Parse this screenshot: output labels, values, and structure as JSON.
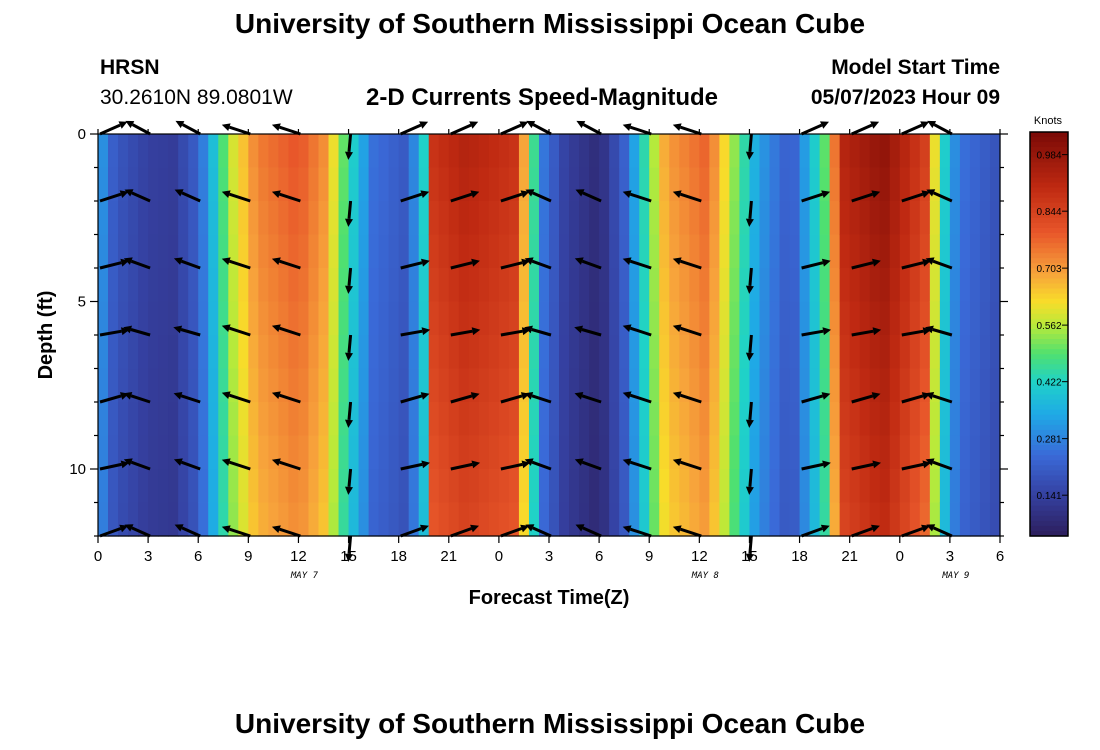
{
  "header": {
    "title": "University of Southern Mississippi Ocean Cube",
    "station_name": "HRSN",
    "station_coords": "30.2610N  89.0801W",
    "plot_title": "2-D Currents Speed-Magnitude",
    "model_start_label": "Model Start Time",
    "model_start_value": "05/07/2023 Hour 09"
  },
  "footer": {
    "title": "University of Southern Mississippi Ocean Cube"
  },
  "chart_data": {
    "type": "heatmap",
    "xlabel": "Forecast Time(Z)",
    "ylabel": "Depth (ft)",
    "x_tick_labels": [
      "0",
      "3",
      "6",
      "9",
      "12",
      "15",
      "18",
      "21",
      "0",
      "3",
      "6",
      "9",
      "12",
      "15",
      "18",
      "21",
      "0",
      "3",
      "6"
    ],
    "date_labels": [
      {
        "text": "MAY 7",
        "at_tick": 4
      },
      {
        "text": "MAY 8",
        "at_tick": 12
      },
      {
        "text": "MAY 9",
        "at_tick": 17
      }
    ],
    "y_ticks": [
      0,
      5,
      10
    ],
    "ylim": [
      0,
      12
    ],
    "colorbar": {
      "title": "Knots",
      "tick_labels": [
        "0.984",
        "0.844",
        "0.703",
        "0.562",
        "0.422",
        "0.281",
        "0.141"
      ],
      "tick_values": [
        0.984,
        0.844,
        0.703,
        0.562,
        0.422,
        0.281,
        0.141
      ],
      "vmin": 0.04,
      "vmax": 1.04
    },
    "speed_profile": [
      {
        "x": 0,
        "v": 0.38
      },
      {
        "x": 0.3,
        "v": 0.3
      },
      {
        "x": 1,
        "v": 0.2
      },
      {
        "x": 3,
        "v": 0.14
      },
      {
        "x": 4.5,
        "v": 0.13
      },
      {
        "x": 6,
        "v": 0.22
      },
      {
        "x": 7,
        "v": 0.4
      },
      {
        "x": 8,
        "v": 0.58
      },
      {
        "x": 9.5,
        "v": 0.74
      },
      {
        "x": 12,
        "v": 0.8
      },
      {
        "x": 13.5,
        "v": 0.72
      },
      {
        "x": 15,
        "v": 0.45
      },
      {
        "x": 16.5,
        "v": 0.25
      },
      {
        "x": 18.5,
        "v": 0.2
      },
      {
        "x": 19.5,
        "v": 0.42
      },
      {
        "x": 20,
        "v": 0.88
      },
      {
        "x": 22,
        "v": 0.93
      },
      {
        "x": 25,
        "v": 0.88
      },
      {
        "x": 26,
        "v": 0.5
      },
      {
        "x": 26.7,
        "v": 0.26
      },
      {
        "x": 28,
        "v": 0.14
      },
      {
        "x": 30,
        "v": 0.08
      },
      {
        "x": 31.5,
        "v": 0.22
      },
      {
        "x": 33,
        "v": 0.5
      },
      {
        "x": 34,
        "v": 0.7
      },
      {
        "x": 36.5,
        "v": 0.78
      },
      {
        "x": 38,
        "v": 0.55
      },
      {
        "x": 39.5,
        "v": 0.33
      },
      {
        "x": 41.5,
        "v": 0.2
      },
      {
        "x": 43.5,
        "v": 0.5
      },
      {
        "x": 44.5,
        "v": 0.92
      },
      {
        "x": 47,
        "v": 1.0
      },
      {
        "x": 49.5,
        "v": 0.85
      },
      {
        "x": 50.5,
        "v": 0.45
      },
      {
        "x": 51.5,
        "v": 0.26
      },
      {
        "x": 54,
        "v": 0.18
      }
    ],
    "arrow_depths_ft": [
      0,
      2,
      4,
      6,
      8,
      10,
      12
    ]
  }
}
